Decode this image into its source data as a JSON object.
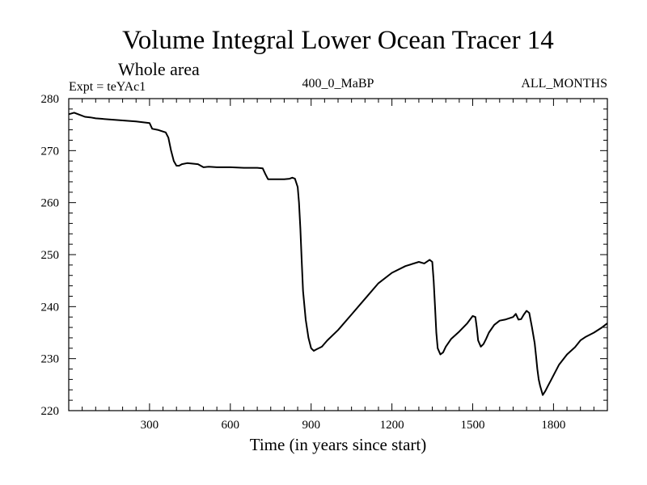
{
  "chart_data": {
    "type": "line",
    "title": "Volume Integral Lower Ocean Tracer 14",
    "subtitle": "Whole area",
    "expt_label": "Expt = teYAc1",
    "run_label": "400_0_MaBP",
    "months_label": "ALL_MONTHS",
    "xlabel": "Time (in years since start)",
    "ylabel": "",
    "xlim": [
      0,
      2000
    ],
    "ylim": [
      220,
      280
    ],
    "xticks": [
      300,
      600,
      900,
      1200,
      1500,
      1800
    ],
    "yticks": [
      220,
      230,
      240,
      250,
      260,
      270,
      280
    ],
    "series": [
      {
        "name": "teYAc1",
        "color": "#000000",
        "x": [
          0,
          20,
          40,
          60,
          80,
          100,
          150,
          200,
          250,
          300,
          310,
          330,
          360,
          370,
          380,
          390,
          400,
          410,
          420,
          440,
          480,
          500,
          520,
          550,
          600,
          650,
          700,
          720,
          730,
          740,
          760,
          800,
          820,
          830,
          840,
          850,
          855,
          860,
          865,
          870,
          880,
          890,
          900,
          910,
          920,
          940,
          960,
          1000,
          1050,
          1100,
          1150,
          1200,
          1250,
          1300,
          1320,
          1340,
          1350,
          1355,
          1360,
          1365,
          1370,
          1380,
          1390,
          1400,
          1420,
          1450,
          1480,
          1500,
          1510,
          1515,
          1520,
          1530,
          1540,
          1550,
          1560,
          1580,
          1600,
          1620,
          1650,
          1660,
          1670,
          1680,
          1690,
          1700,
          1710,
          1720,
          1730,
          1735,
          1740,
          1745,
          1750,
          1760,
          1770,
          1780,
          1790,
          1800,
          1820,
          1850,
          1880,
          1900,
          1920,
          1950,
          1980,
          2000
        ],
        "y": [
          277.0,
          277.3,
          276.9,
          276.5,
          276.4,
          276.2,
          276.0,
          275.8,
          275.6,
          275.3,
          274.2,
          274.0,
          273.5,
          272.5,
          270.0,
          268.0,
          267.1,
          267.1,
          267.4,
          267.6,
          267.4,
          266.8,
          266.9,
          266.8,
          266.8,
          266.7,
          266.7,
          266.6,
          265.5,
          264.5,
          264.5,
          264.5,
          264.6,
          264.8,
          264.6,
          263.0,
          260.0,
          255.0,
          249.0,
          243.0,
          237.5,
          234.0,
          232.0,
          231.5,
          231.8,
          232.3,
          233.5,
          235.5,
          238.5,
          241.5,
          244.5,
          246.5,
          247.8,
          248.6,
          248.3,
          249.0,
          248.6,
          245.0,
          240.0,
          235.0,
          232.0,
          230.8,
          231.2,
          232.3,
          233.8,
          235.2,
          236.8,
          238.2,
          238.0,
          236.0,
          233.5,
          232.3,
          232.8,
          233.8,
          235.0,
          236.5,
          237.3,
          237.5,
          238.0,
          238.6,
          237.5,
          237.6,
          238.5,
          239.2,
          238.8,
          236.0,
          233.0,
          230.5,
          228.0,
          226.0,
          224.8,
          223.0,
          223.8,
          224.8,
          225.8,
          226.8,
          228.8,
          230.8,
          232.2,
          233.5,
          234.2,
          235.0,
          236.0,
          236.8
        ]
      }
    ]
  }
}
